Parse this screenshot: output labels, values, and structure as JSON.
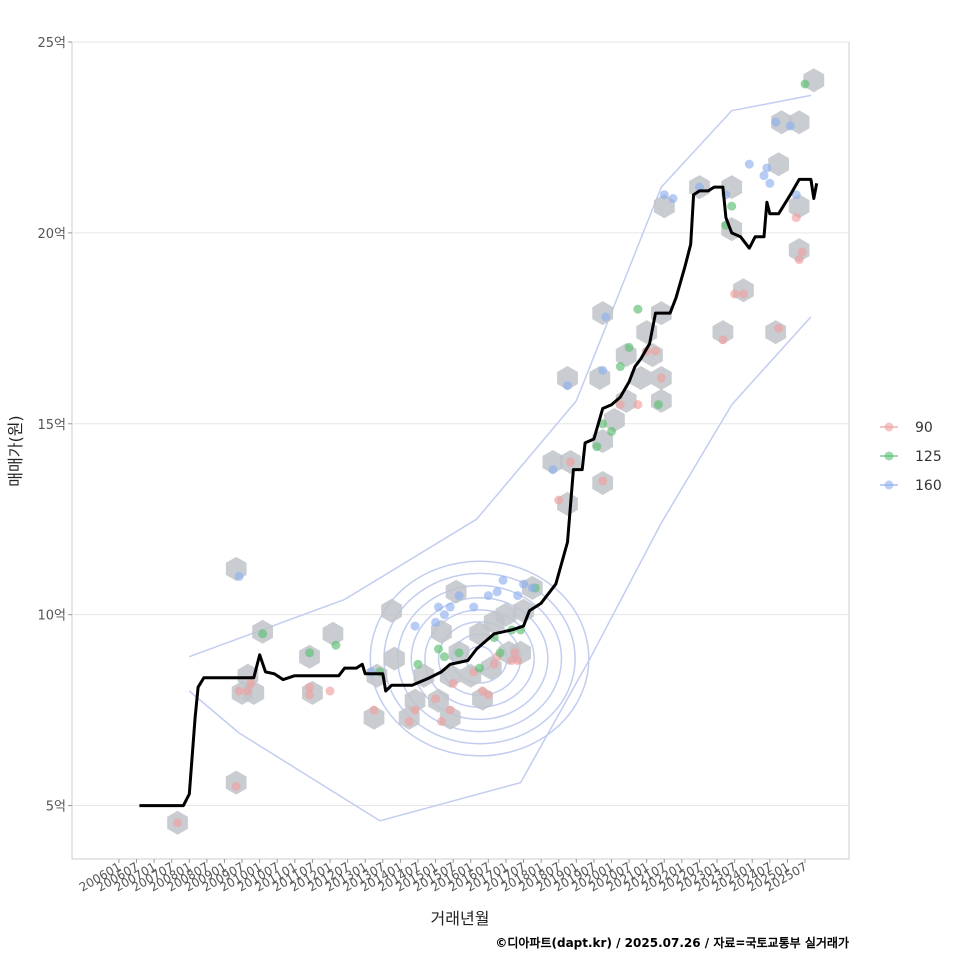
{
  "chart_data": {
    "type": "scatter",
    "xlabel": "거래년월",
    "ylabel": "매매가(원)",
    "caption": "©디아파트(dapt.kr) / 2025.07.26 / 자료=국토교통부 실거래가",
    "ylim": [
      3.6,
      25
    ],
    "xlim": [
      "2004-09",
      "2026-10"
    ],
    "grid": "horizontal",
    "legend_position": "right",
    "y_ticks": [
      {
        "value": 5,
        "label": "5억"
      },
      {
        "value": 10,
        "label": "10억"
      },
      {
        "value": 15,
        "label": "15억"
      },
      {
        "value": 20,
        "label": "20억"
      },
      {
        "value": 25,
        "label": "25억"
      }
    ],
    "x_ticks": [
      "200601",
      "200607",
      "200701",
      "200707",
      "200801",
      "200807",
      "200901",
      "200907",
      "201001",
      "201007",
      "201101",
      "201107",
      "201201",
      "201207",
      "201301",
      "201307",
      "201401",
      "201407",
      "201501",
      "201507",
      "201601",
      "201607",
      "201701",
      "201707",
      "201801",
      "201807",
      "201901",
      "201907",
      "202001",
      "202007",
      "202101",
      "202107",
      "202201",
      "202207",
      "202301",
      "202307",
      "202401",
      "202407",
      "202501",
      "202507"
    ],
    "legend": [
      {
        "name": "90",
        "color": "#f0a0a0"
      },
      {
        "name": "125",
        "color": "#5cbf73"
      },
      {
        "name": "160",
        "color": "#8fb0ee"
      }
    ],
    "hex_color": "#bfc4c9",
    "contour_color": "#c2cdf0",
    "line_color": "#000000",
    "series": [
      {
        "name": "90",
        "points": [
          [
            "2007-09",
            4.55
          ],
          [
            "2009-05",
            5.5
          ],
          [
            "2009-06",
            8.0
          ],
          [
            "2009-09",
            8.0
          ],
          [
            "2009-10",
            8.2
          ],
          [
            "2011-06",
            7.9
          ],
          [
            "2011-06",
            8.1
          ],
          [
            "2012-01",
            8.0
          ],
          [
            "2013-04",
            7.5
          ],
          [
            "2014-04",
            7.2
          ],
          [
            "2014-06",
            7.5
          ],
          [
            "2015-01",
            7.8
          ],
          [
            "2015-03",
            7.2
          ],
          [
            "2015-06",
            7.5
          ],
          [
            "2015-07",
            8.2
          ],
          [
            "2016-02",
            8.5
          ],
          [
            "2016-05",
            8.0
          ],
          [
            "2016-07",
            7.9
          ],
          [
            "2016-09",
            8.7
          ],
          [
            "2016-10",
            8.9
          ],
          [
            "2017-03",
            8.8
          ],
          [
            "2017-04",
            9.0
          ],
          [
            "2017-05",
            8.8
          ],
          [
            "2018-07",
            13.0
          ],
          [
            "2018-11",
            14.0
          ],
          [
            "2019-10",
            13.5
          ],
          [
            "2020-04",
            15.5
          ],
          [
            "2020-10",
            15.5
          ],
          [
            "2021-01",
            16.9
          ],
          [
            "2021-04",
            16.9
          ],
          [
            "2021-06",
            16.2
          ],
          [
            "2023-03",
            17.2
          ],
          [
            "2023-07",
            18.4
          ],
          [
            "2023-10",
            18.4
          ],
          [
            "2024-10",
            17.5
          ],
          [
            "2025-04",
            20.4
          ],
          [
            "2025-05",
            19.3
          ],
          [
            "2025-06",
            19.5
          ]
        ]
      },
      {
        "name": "125",
        "points": [
          [
            "2010-02",
            9.5
          ],
          [
            "2011-06",
            9.0
          ],
          [
            "2012-03",
            9.2
          ],
          [
            "2013-06",
            8.5
          ],
          [
            "2014-07",
            8.7
          ],
          [
            "2015-02",
            9.1
          ],
          [
            "2015-04",
            8.9
          ],
          [
            "2015-09",
            9.0
          ],
          [
            "2016-04",
            8.6
          ],
          [
            "2016-09",
            9.4
          ],
          [
            "2016-11",
            9.0
          ],
          [
            "2017-03",
            9.6
          ],
          [
            "2017-06",
            9.6
          ],
          [
            "2017-11",
            10.7
          ],
          [
            "2019-08",
            14.4
          ],
          [
            "2019-10",
            15.0
          ],
          [
            "2020-01",
            14.8
          ],
          [
            "2020-04",
            16.5
          ],
          [
            "2020-07",
            17.0
          ],
          [
            "2020-10",
            18.0
          ],
          [
            "2021-05",
            15.5
          ],
          [
            "2023-04",
            20.2
          ],
          [
            "2023-06",
            20.7
          ],
          [
            "2025-07",
            23.9
          ]
        ]
      },
      {
        "name": "160",
        "points": [
          [
            "2009-06",
            11.0
          ],
          [
            "2013-03",
            8.5
          ],
          [
            "2014-06",
            9.7
          ],
          [
            "2015-01",
            9.8
          ],
          [
            "2015-02",
            10.2
          ],
          [
            "2015-04",
            10.0
          ],
          [
            "2015-06",
            10.2
          ],
          [
            "2015-09",
            10.5
          ],
          [
            "2016-02",
            10.2
          ],
          [
            "2016-07",
            10.5
          ],
          [
            "2016-10",
            10.6
          ],
          [
            "2016-12",
            10.9
          ],
          [
            "2017-05",
            10.5
          ],
          [
            "2017-07",
            10.8
          ],
          [
            "2017-10",
            10.7
          ],
          [
            "2018-05",
            13.8
          ],
          [
            "2018-10",
            16.0
          ],
          [
            "2019-10",
            16.4
          ],
          [
            "2019-11",
            17.8
          ],
          [
            "2021-07",
            21.0
          ],
          [
            "2021-10",
            20.9
          ],
          [
            "2022-07",
            21.2
          ],
          [
            "2023-04",
            21.0
          ],
          [
            "2023-12",
            21.8
          ],
          [
            "2024-05",
            21.5
          ],
          [
            "2024-06",
            21.7
          ],
          [
            "2024-07",
            21.3
          ],
          [
            "2024-09",
            22.9
          ],
          [
            "2025-02",
            22.8
          ],
          [
            "2025-04",
            21.0
          ]
        ]
      }
    ],
    "hexbins": [
      [
        "2007-09",
        4.55
      ],
      [
        "2009-05",
        5.6
      ],
      [
        "2009-05",
        11.2
      ],
      [
        "2009-07",
        7.95
      ],
      [
        "2009-11",
        7.95
      ],
      [
        "2009-09",
        8.4
      ],
      [
        "2010-02",
        9.55
      ],
      [
        "2011-07",
        7.95
      ],
      [
        "2011-06",
        8.9
      ],
      [
        "2012-02",
        9.5
      ],
      [
        "2013-04",
        7.3
      ],
      [
        "2013-05",
        8.4
      ],
      [
        "2013-10",
        10.1
      ],
      [
        "2013-11",
        8.85
      ],
      [
        "2014-04",
        7.3
      ],
      [
        "2014-06",
        7.75
      ],
      [
        "2014-09",
        8.4
      ],
      [
        "2015-02",
        7.75
      ],
      [
        "2015-06",
        7.3
      ],
      [
        "2015-03",
        9.55
      ],
      [
        "2015-06",
        8.4
      ],
      [
        "2015-09",
        9.0
      ],
      [
        "2015-08",
        10.6
      ],
      [
        "2016-01",
        8.4
      ],
      [
        "2016-05",
        7.8
      ],
      [
        "2016-04",
        9.5
      ],
      [
        "2016-08",
        8.6
      ],
      [
        "2016-09",
        9.8
      ],
      [
        "2017-01",
        10.0
      ],
      [
        "2017-02",
        9.0
      ],
      [
        "2017-06",
        9.0
      ],
      [
        "2017-07",
        10.1
      ],
      [
        "2017-10",
        10.7
      ],
      [
        "2018-05",
        14.0
      ],
      [
        "2018-10",
        12.9
      ],
      [
        "2018-11",
        14.0
      ],
      [
        "2018-10",
        16.2
      ],
      [
        "2019-10",
        17.9
      ],
      [
        "2019-09",
        16.2
      ],
      [
        "2019-10",
        13.45
      ],
      [
        "2019-10",
        14.55
      ],
      [
        "2020-02",
        15.1
      ],
      [
        "2020-06",
        15.6
      ],
      [
        "2020-06",
        16.8
      ],
      [
        "2020-11",
        16.2
      ],
      [
        "2021-01",
        17.4
      ],
      [
        "2021-03",
        16.8
      ],
      [
        "2021-06",
        16.2
      ],
      [
        "2021-06",
        15.6
      ],
      [
        "2021-06",
        17.9
      ],
      [
        "2021-07",
        20.7
      ],
      [
        "2022-07",
        21.2
      ],
      [
        "2023-03",
        17.4
      ],
      [
        "2023-06",
        21.2
      ],
      [
        "2023-06",
        20.1
      ],
      [
        "2023-10",
        18.5
      ],
      [
        "2024-09",
        17.4
      ],
      [
        "2024-10",
        21.8
      ],
      [
        "2024-11",
        22.9
      ],
      [
        "2025-05",
        22.9
      ],
      [
        "2025-05",
        20.7
      ],
      [
        "2025-05",
        19.55
      ],
      [
        "2025-10",
        24.0
      ]
    ],
    "trend_line": [
      [
        "2006-08",
        5.0
      ],
      [
        "2007-11",
        5.0
      ],
      [
        "2008-01",
        5.3
      ],
      [
        "2008-03",
        7.3
      ],
      [
        "2008-04",
        8.1
      ],
      [
        "2008-06",
        8.35
      ],
      [
        "2009-11",
        8.35
      ],
      [
        "2010-01",
        8.95
      ],
      [
        "2010-03",
        8.5
      ],
      [
        "2010-06",
        8.45
      ],
      [
        "2010-09",
        8.3
      ],
      [
        "2011-01",
        8.4
      ],
      [
        "2011-10",
        8.4
      ],
      [
        "2012-04",
        8.4
      ],
      [
        "2012-06",
        8.6
      ],
      [
        "2012-10",
        8.6
      ],
      [
        "2012-12",
        8.7
      ],
      [
        "2013-01",
        8.45
      ],
      [
        "2013-07",
        8.45
      ],
      [
        "2013-08",
        8.0
      ],
      [
        "2013-10",
        8.15
      ],
      [
        "2014-05",
        8.15
      ],
      [
        "2014-11",
        8.35
      ],
      [
        "2015-03",
        8.5
      ],
      [
        "2015-06",
        8.7
      ],
      [
        "2015-12",
        8.8
      ],
      [
        "2016-03",
        9.1
      ],
      [
        "2016-06",
        9.3
      ],
      [
        "2016-09",
        9.5
      ],
      [
        "2017-03",
        9.6
      ],
      [
        "2017-07",
        9.7
      ],
      [
        "2017-09",
        10.1
      ],
      [
        "2018-01",
        10.3
      ],
      [
        "2018-06",
        10.8
      ],
      [
        "2018-10",
        11.9
      ],
      [
        "2018-12",
        13.8
      ],
      [
        "2019-03",
        13.8
      ],
      [
        "2019-04",
        14.5
      ],
      [
        "2019-07",
        14.6
      ],
      [
        "2019-10",
        15.4
      ],
      [
        "2020-01",
        15.5
      ],
      [
        "2020-04",
        15.7
      ],
      [
        "2020-07",
        16.1
      ],
      [
        "2020-09",
        16.5
      ],
      [
        "2020-11",
        16.7
      ],
      [
        "2021-02",
        17.1
      ],
      [
        "2021-04",
        17.9
      ],
      [
        "2021-09",
        17.9
      ],
      [
        "2021-11",
        18.3
      ],
      [
        "2022-02",
        19.1
      ],
      [
        "2022-04",
        19.7
      ],
      [
        "2022-05",
        21.0
      ],
      [
        "2022-07",
        21.1
      ],
      [
        "2022-10",
        21.1
      ],
      [
        "2022-12",
        21.2
      ],
      [
        "2023-03",
        21.2
      ],
      [
        "2023-04",
        20.4
      ],
      [
        "2023-06",
        20.0
      ],
      [
        "2023-09",
        19.9
      ],
      [
        "2023-12",
        19.6
      ],
      [
        "2024-02",
        19.9
      ],
      [
        "2024-05",
        19.9
      ],
      [
        "2024-06",
        20.8
      ],
      [
        "2024-07",
        20.5
      ],
      [
        "2024-10",
        20.5
      ],
      [
        "2025-02",
        21.0
      ],
      [
        "2025-05",
        21.4
      ],
      [
        "2025-09",
        21.4
      ],
      [
        "2025-10",
        20.9
      ],
      [
        "2025-11",
        21.3
      ]
    ],
    "kde": {
      "center": [
        "2016-04",
        8.85
      ],
      "sx": 2.7,
      "sy": 1.5,
      "levels": [
        1,
        2,
        3,
        4,
        5,
        6,
        7,
        8
      ]
    }
  }
}
